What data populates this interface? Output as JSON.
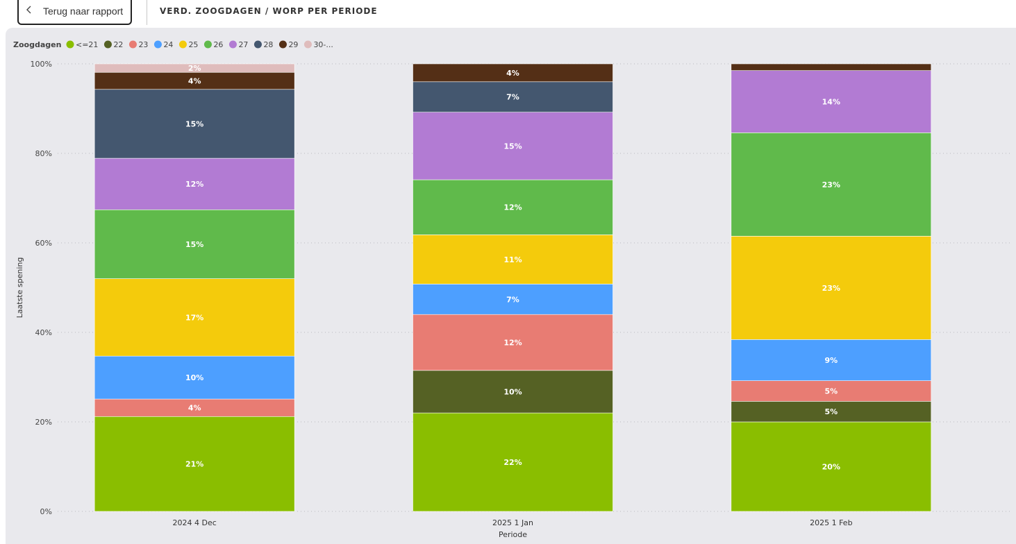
{
  "header": {
    "back_label": "Terug naar rapport",
    "title": "VERD. ZOOGDAGEN / WORP PER PERIODE"
  },
  "chart_data": {
    "type": "bar",
    "stacked": "percent",
    "legend_title": "Zoogdagen",
    "legend_position": "top-left",
    "xlabel": "Periode",
    "ylabel": "Laatste spening",
    "ylim": [
      0,
      100
    ],
    "y_ticks": [
      "0%",
      "20%",
      "40%",
      "60%",
      "80%",
      "100%"
    ],
    "y_tick_values": [
      0,
      20,
      40,
      60,
      80,
      100
    ],
    "grid": true,
    "categories": [
      "2024 4 Dec",
      "2025 1 Jan",
      "2025 1 Feb"
    ],
    "series": [
      {
        "name": "<=21",
        "color": "#8abe00",
        "values": [
          21.2,
          22.0,
          20.0
        ],
        "labels": [
          "21%",
          "22%",
          "20%"
        ]
      },
      {
        "name": "22",
        "color": "#556124",
        "values": [
          0,
          9.5,
          4.6
        ],
        "labels": [
          "",
          "10%",
          "5%"
        ]
      },
      {
        "name": "23",
        "color": "#e87c73",
        "values": [
          3.9,
          12.5,
          4.6
        ],
        "labels": [
          "4%",
          "12%",
          "5%"
        ]
      },
      {
        "name": "24",
        "color": "#4d9fff",
        "values": [
          9.6,
          6.8,
          9.2
        ],
        "labels": [
          "10%",
          "7%",
          "9%"
        ]
      },
      {
        "name": "25",
        "color": "#f4cb0c",
        "values": [
          17.3,
          11.0,
          23.1
        ],
        "labels": [
          "17%",
          "11%",
          "23%"
        ]
      },
      {
        "name": "26",
        "color": "#60ba4b",
        "values": [
          15.4,
          12.3,
          23.1
        ],
        "labels": [
          "15%",
          "12%",
          "23%"
        ]
      },
      {
        "name": "27",
        "color": "#b27bd3",
        "values": [
          11.5,
          15.1,
          13.9
        ],
        "labels": [
          "12%",
          "15%",
          "14%"
        ]
      },
      {
        "name": "28",
        "color": "#44576f",
        "values": [
          15.4,
          6.8,
          0
        ],
        "labels": [
          "15%",
          "7%",
          ""
        ]
      },
      {
        "name": "29",
        "color": "#542f16",
        "values": [
          3.8,
          4.0,
          1.5
        ],
        "labels": [
          "4%",
          "4%",
          ""
        ]
      },
      {
        "name": "30-...",
        "color": "#dfbcbc",
        "values": [
          1.9,
          0,
          0
        ],
        "labels": [
          "2%",
          "",
          ""
        ]
      }
    ]
  }
}
